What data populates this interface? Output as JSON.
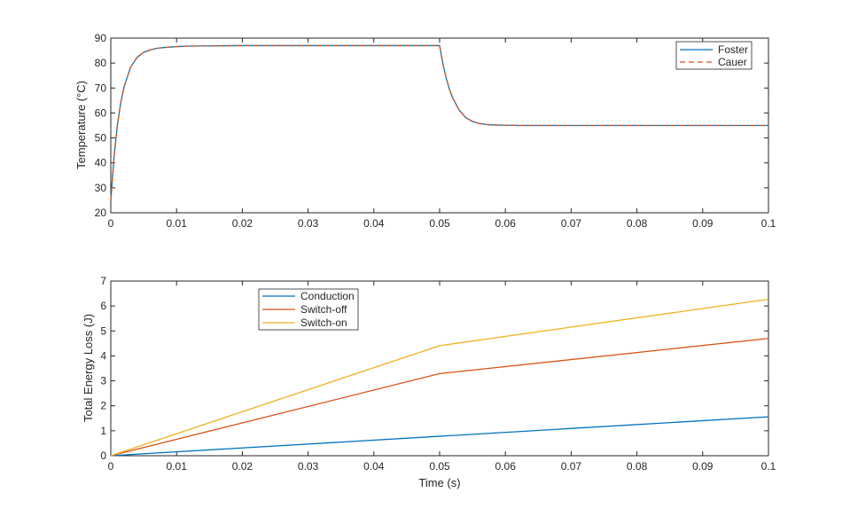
{
  "chart_data": [
    {
      "type": "line",
      "xlabel": "",
      "ylabel": "Temperature  (°C)",
      "xlim": [
        0,
        0.1
      ],
      "ylim": [
        20,
        90
      ],
      "xticks": [
        0,
        0.01,
        0.02,
        0.03,
        0.04,
        0.05,
        0.06,
        0.07,
        0.08,
        0.09,
        0.1
      ],
      "xtick_labels": [
        "0",
        "0.01",
        "0.02",
        "0.03",
        "0.04",
        "0.05",
        "0.06",
        "0.07",
        "0.08",
        "0.09",
        "0.1"
      ],
      "yticks": [
        20,
        30,
        40,
        50,
        60,
        70,
        80,
        90
      ],
      "ytick_labels": [
        "20",
        "30",
        "40",
        "50",
        "60",
        "70",
        "80",
        "90"
      ],
      "grid": false,
      "legend_position": "top-right",
      "series": [
        {
          "name": "Foster",
          "color": "#0072BD",
          "dash": "solid",
          "x": [
            0,
            0.0005,
            0.001,
            0.0015,
            0.002,
            0.003,
            0.004,
            0.005,
            0.006,
            0.007,
            0.008,
            0.01,
            0.012,
            0.015,
            0.02,
            0.03,
            0.04,
            0.05,
            0.0505,
            0.051,
            0.0515,
            0.052,
            0.053,
            0.054,
            0.055,
            0.056,
            0.057,
            0.058,
            0.06,
            0.062,
            0.065,
            0.07,
            0.08,
            0.09,
            0.1
          ],
          "y": [
            25,
            42.6,
            55.1,
            63.9,
            70.3,
            78.3,
            82.3,
            84.3,
            85.3,
            85.9,
            86.2,
            86.6,
            86.8,
            86.9,
            87,
            87,
            87,
            87,
            79.7,
            74,
            69.4,
            65.9,
            61,
            58.1,
            56.6,
            55.8,
            55.4,
            55.2,
            55.1,
            55,
            55,
            55,
            55,
            55,
            55
          ]
        },
        {
          "name": "Cauer",
          "color": "#D95319",
          "dash": "dashed",
          "x": [
            0,
            0.0005,
            0.001,
            0.0015,
            0.002,
            0.003,
            0.004,
            0.005,
            0.006,
            0.007,
            0.008,
            0.01,
            0.012,
            0.015,
            0.02,
            0.03,
            0.04,
            0.05,
            0.0505,
            0.051,
            0.0515,
            0.052,
            0.053,
            0.054,
            0.055,
            0.056,
            0.057,
            0.058,
            0.06,
            0.062,
            0.065,
            0.07,
            0.08,
            0.09,
            0.1
          ],
          "y": [
            25,
            42.6,
            55.1,
            63.9,
            70.3,
            78.3,
            82.3,
            84.3,
            85.3,
            85.9,
            86.2,
            86.6,
            86.8,
            86.9,
            87,
            87,
            87,
            87,
            79.7,
            74,
            69.4,
            65.9,
            61,
            58.1,
            56.6,
            55.8,
            55.4,
            55.2,
            55.1,
            55,
            55,
            55,
            55,
            55,
            55
          ]
        }
      ]
    },
    {
      "type": "line",
      "xlabel": "Time (s)",
      "ylabel": "Total Energy Loss (J)",
      "xlim": [
        0,
        0.1
      ],
      "ylim": [
        0,
        7
      ],
      "xticks": [
        0,
        0.01,
        0.02,
        0.03,
        0.04,
        0.05,
        0.06,
        0.07,
        0.08,
        0.09,
        0.1
      ],
      "xtick_labels": [
        "0",
        "0.01",
        "0.02",
        "0.03",
        "0.04",
        "0.05",
        "0.06",
        "0.07",
        "0.08",
        "0.09",
        "0.1"
      ],
      "yticks": [
        0,
        1,
        2,
        3,
        4,
        5,
        6,
        7
      ],
      "ytick_labels": [
        "0",
        "1",
        "2",
        "3",
        "4",
        "5",
        "6",
        "7"
      ],
      "grid": false,
      "legend_position": "top-left",
      "series": [
        {
          "name": "Conduction",
          "color": "#0072BD",
          "dash": "solid",
          "x": [
            0,
            0.05,
            0.1
          ],
          "y": [
            0,
            0.78,
            1.56
          ]
        },
        {
          "name": "Switch-off",
          "color": "#D95319",
          "dash": "solid",
          "x": [
            0,
            0.05,
            0.1
          ],
          "y": [
            0,
            3.29,
            4.7
          ]
        },
        {
          "name": "Switch-on",
          "color": "#EDB120",
          "dash": "solid",
          "x": [
            0,
            0.05,
            0.1
          ],
          "y": [
            0,
            4.41,
            6.27
          ]
        }
      ]
    }
  ]
}
